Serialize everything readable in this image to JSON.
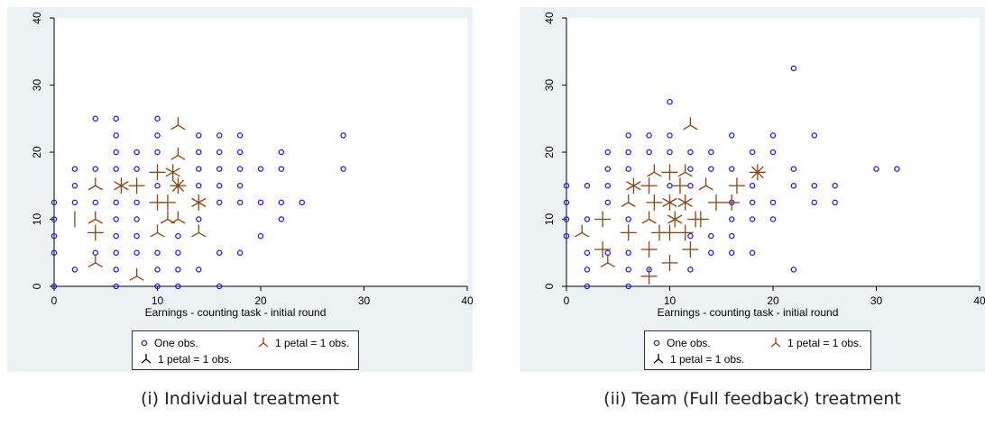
{
  "colors": {
    "blue": "#1a1aff",
    "brown": "#8b4513",
    "black": "#000000",
    "axis": "#000000"
  },
  "panels": [
    {
      "caption": "(i) Individual treatment",
      "legend": {
        "one": "One obs.",
        "brown": "1 petal = 1 obs.",
        "black": "1 petal = 1 obs."
      }
    },
    {
      "caption": "(ii) Team (Full feedback) treatment",
      "legend": {
        "one": "One obs.",
        "brown": "1 petal = 1 obs.",
        "black": "1 petal = 1 obs."
      }
    }
  ],
  "chart_data": [
    {
      "type": "scatter",
      "title": "",
      "xlabel": "Earnings - counting task - initial round",
      "ylabel": "",
      "xlim": [
        0,
        40
      ],
      "ylim": [
        0,
        40
      ],
      "xticks": [
        0,
        10,
        20,
        30,
        40
      ],
      "yticks": [
        0,
        10,
        20,
        30,
        40
      ],
      "single_obs": [
        [
          0,
          0
        ],
        [
          0,
          5
        ],
        [
          0,
          7.5
        ],
        [
          0,
          10
        ],
        [
          0,
          12.5
        ],
        [
          2,
          2.5
        ],
        [
          2,
          12.5
        ],
        [
          2,
          15
        ],
        [
          2,
          17.5
        ],
        [
          4,
          5
        ],
        [
          4,
          12.5
        ],
        [
          4,
          17.5
        ],
        [
          4,
          25
        ],
        [
          6,
          0
        ],
        [
          6,
          2.5
        ],
        [
          6,
          5
        ],
        [
          6,
          7.5
        ],
        [
          6,
          10
        ],
        [
          6,
          12.5
        ],
        [
          6,
          17.5
        ],
        [
          6,
          20
        ],
        [
          6,
          22.5
        ],
        [
          6,
          25
        ],
        [
          8,
          5
        ],
        [
          8,
          7.5
        ],
        [
          8,
          10
        ],
        [
          8,
          12.5
        ],
        [
          8,
          17.5
        ],
        [
          8,
          20
        ],
        [
          10,
          0
        ],
        [
          10,
          2.5
        ],
        [
          10,
          5
        ],
        [
          10,
          15
        ],
        [
          10,
          20
        ],
        [
          10,
          22.5
        ],
        [
          10,
          25
        ],
        [
          12,
          0
        ],
        [
          12,
          2.5
        ],
        [
          12,
          5
        ],
        [
          12,
          7.5
        ],
        [
          14,
          2.5
        ],
        [
          14,
          10
        ],
        [
          14,
          15
        ],
        [
          14,
          17.5
        ],
        [
          14,
          20
        ],
        [
          14,
          22.5
        ],
        [
          16,
          0
        ],
        [
          16,
          5
        ],
        [
          16,
          12.5
        ],
        [
          16,
          15
        ],
        [
          16,
          17.5
        ],
        [
          16,
          20
        ],
        [
          16,
          22.5
        ],
        [
          18,
          5
        ],
        [
          18,
          12.5
        ],
        [
          18,
          15
        ],
        [
          18,
          17.5
        ],
        [
          18,
          20
        ],
        [
          18,
          22.5
        ],
        [
          20,
          7.5
        ],
        [
          20,
          12.5
        ],
        [
          20,
          17.5
        ],
        [
          22,
          10
        ],
        [
          22,
          12.5
        ],
        [
          22,
          17.5
        ],
        [
          22,
          20
        ],
        [
          24,
          12.5
        ],
        [
          28,
          17.5
        ],
        [
          28,
          22.5
        ]
      ],
      "sunflowers_brown": [
        [
          2,
          10,
          2
        ],
        [
          4,
          8,
          4
        ],
        [
          4,
          10,
          3
        ],
        [
          4,
          15,
          3
        ],
        [
          4,
          3.5,
          3
        ],
        [
          6.5,
          15,
          6
        ],
        [
          8,
          15,
          4
        ],
        [
          8,
          1.5,
          3
        ],
        [
          10,
          8,
          3
        ],
        [
          10,
          12.5,
          4
        ],
        [
          10,
          17,
          4
        ],
        [
          11,
          10,
          3
        ],
        [
          11,
          12.5,
          4
        ],
        [
          12,
          15,
          8
        ],
        [
          11.5,
          17,
          6
        ],
        [
          12,
          19.5,
          3
        ],
        [
          12,
          24,
          3
        ],
        [
          12,
          10,
          3
        ],
        [
          14,
          12.5,
          6
        ],
        [
          14,
          8,
          3
        ]
      ],
      "sunflowers_black": []
    },
    {
      "type": "scatter",
      "title": "",
      "xlabel": "Earnings - counting task - initial round",
      "ylabel": "",
      "xlim": [
        0,
        40
      ],
      "ylim": [
        0,
        40
      ],
      "xticks": [
        0,
        10,
        20,
        30,
        40
      ],
      "yticks": [
        0,
        10,
        20,
        30,
        40
      ],
      "single_obs": [
        [
          0,
          7.5
        ],
        [
          0,
          10
        ],
        [
          0,
          12.5
        ],
        [
          0,
          15
        ],
        [
          2,
          0
        ],
        [
          2,
          2.5
        ],
        [
          2,
          5
        ],
        [
          2,
          10
        ],
        [
          2,
          15
        ],
        [
          4,
          5
        ],
        [
          4,
          12.5
        ],
        [
          4,
          15
        ],
        [
          4,
          17.5
        ],
        [
          4,
          20
        ],
        [
          6,
          0
        ],
        [
          6,
          2.5
        ],
        [
          6,
          5
        ],
        [
          6,
          10
        ],
        [
          6,
          17.5
        ],
        [
          6,
          20
        ],
        [
          6,
          22.5
        ],
        [
          8,
          2.5
        ],
        [
          8,
          20
        ],
        [
          8,
          22.5
        ],
        [
          10,
          15
        ],
        [
          10,
          20
        ],
        [
          10,
          22.5
        ],
        [
          10,
          27.5
        ],
        [
          12,
          2.5
        ],
        [
          12,
          7.5
        ],
        [
          12,
          15
        ],
        [
          12,
          17.5
        ],
        [
          12,
          20
        ],
        [
          14,
          5
        ],
        [
          14,
          7.5
        ],
        [
          14,
          17.5
        ],
        [
          14,
          20
        ],
        [
          16,
          5
        ],
        [
          16,
          7.5
        ],
        [
          16,
          10
        ],
        [
          16,
          12.5
        ],
        [
          16,
          17.5
        ],
        [
          16,
          22.5
        ],
        [
          18,
          5
        ],
        [
          18,
          10
        ],
        [
          18,
          12.5
        ],
        [
          18,
          15
        ],
        [
          18,
          20
        ],
        [
          20,
          10
        ],
        [
          20,
          12.5
        ],
        [
          20,
          20
        ],
        [
          20,
          22.5
        ],
        [
          22,
          2.5
        ],
        [
          22,
          15
        ],
        [
          22,
          17.5
        ],
        [
          22,
          32.5
        ],
        [
          24,
          12.5
        ],
        [
          24,
          15
        ],
        [
          24,
          22.5
        ],
        [
          26,
          12.5
        ],
        [
          26,
          15
        ],
        [
          30,
          17.5
        ],
        [
          32,
          17.5
        ]
      ],
      "sunflowers_brown": [
        [
          1.5,
          8,
          3
        ],
        [
          3.5,
          10,
          4
        ],
        [
          3.5,
          5.5,
          4
        ],
        [
          4,
          3.5,
          3
        ],
        [
          6,
          8,
          4
        ],
        [
          6,
          12.5,
          3
        ],
        [
          6.5,
          15,
          6
        ],
        [
          8,
          15,
          4
        ],
        [
          8,
          10,
          3
        ],
        [
          8,
          1.5,
          4
        ],
        [
          8,
          5.5,
          4
        ],
        [
          8.5,
          17,
          3
        ],
        [
          8.5,
          12.5,
          4
        ],
        [
          9,
          8,
          4
        ],
        [
          10,
          12.5,
          6
        ],
        [
          10,
          17,
          4
        ],
        [
          10,
          8,
          4
        ],
        [
          10,
          3.5,
          4
        ],
        [
          10.5,
          10,
          6
        ],
        [
          11,
          15,
          4
        ],
        [
          11.5,
          12.5,
          6
        ],
        [
          11.5,
          17,
          3
        ],
        [
          11.5,
          8,
          4
        ],
        [
          12,
          5.5,
          4
        ],
        [
          12,
          24,
          3
        ],
        [
          12.5,
          10,
          4
        ],
        [
          13.5,
          15,
          3
        ],
        [
          13,
          10,
          4
        ],
        [
          14.5,
          12.5,
          4
        ],
        [
          16,
          12.5,
          4
        ],
        [
          16.5,
          15,
          4
        ],
        [
          18.5,
          17,
          8
        ]
      ],
      "sunflowers_black": []
    }
  ]
}
